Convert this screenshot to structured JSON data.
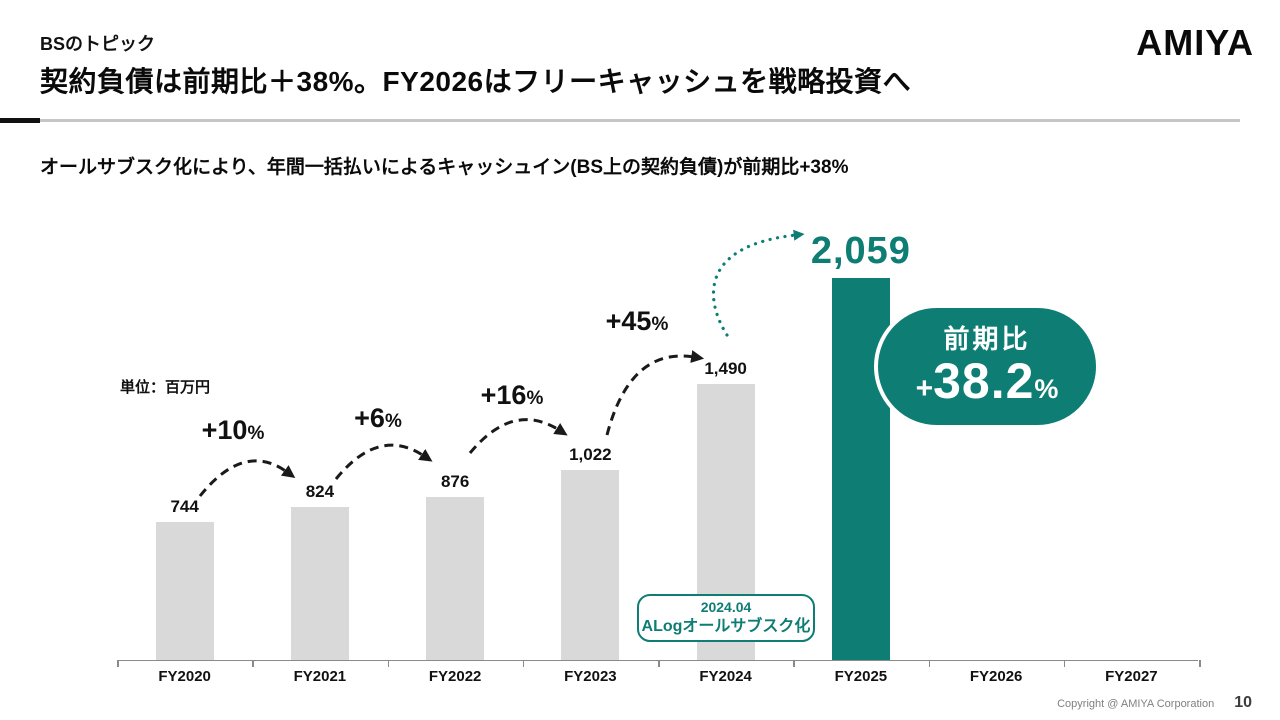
{
  "header": {
    "eyebrow": "BSのトピック",
    "title": "契約負債は前期比＋38%。FY2026はフリーキャッシュを戦略投資へ",
    "logo": "AMIYA"
  },
  "subtitle": "オールサブスク化により、年間一括払いによるキャッシュイン(BS上の契約負債)が前期比+38%",
  "chart_data": {
    "type": "bar",
    "unit_label": "単位：百万円",
    "categories": [
      "FY2020",
      "FY2021",
      "FY2022",
      "FY2023",
      "FY2024",
      "FY2025",
      "FY2026",
      "FY2027"
    ],
    "values": [
      744,
      824,
      876,
      1022,
      1490,
      2059,
      null,
      null
    ],
    "value_labels": [
      "744",
      "824",
      "876",
      "1,022",
      "1,490",
      "2,059",
      "",
      ""
    ],
    "accent_index": 5,
    "growth": [
      {
        "num": "+10",
        "pct": "%"
      },
      {
        "num": "+6",
        "pct": "%"
      },
      {
        "num": "+16",
        "pct": "%"
      },
      {
        "num": "+45",
        "pct": "%"
      }
    ],
    "badge": {
      "title": "前期比",
      "plus": "+",
      "value": "38.2",
      "percent": "%"
    },
    "callout": {
      "line1": "2024.04",
      "line2": "ALogオールサブスク化"
    },
    "colors": {
      "accent": "#0E7D74",
      "bar": "#D9D9D9"
    },
    "ylim": [
      0,
      2200
    ],
    "grid": false,
    "legend": false
  },
  "footer": {
    "copyright": "Copyright @ AMIYA Corporation",
    "page": "10"
  }
}
